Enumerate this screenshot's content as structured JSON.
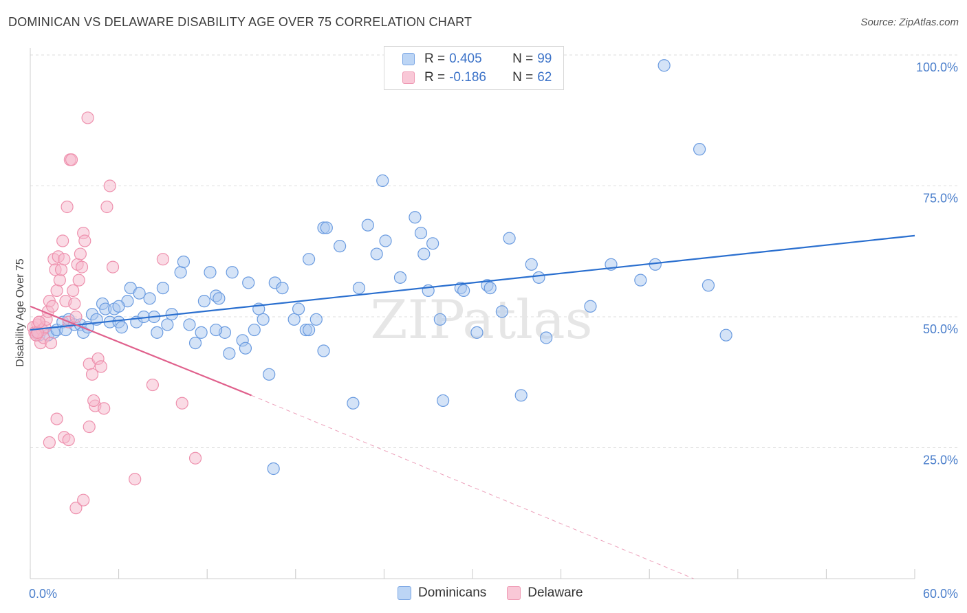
{
  "header": {
    "title": "DOMINICAN VS DELAWARE DISABILITY AGE OVER 75 CORRELATION CHART",
    "source": "Source: ZipAtlas.com"
  },
  "legend": {
    "rows": [
      {
        "r_label": "R = ",
        "r_value": "0.405",
        "n_label": "N = ",
        "n_value": "99"
      },
      {
        "r_label": "R = ",
        "r_value": "-0.186",
        "n_label": "N = ",
        "n_value": "62"
      }
    ]
  },
  "bottom_legend": {
    "dominicans": "Dominicans",
    "delaware": "Delaware"
  },
  "colors": {
    "blue_fill": "#a9c8f0",
    "blue_stroke": "#6a9be0",
    "blue_line": "#2a6fcf",
    "pink_fill": "#f6b8cb",
    "pink_stroke": "#ee90ad",
    "pink_line": "#e0608c",
    "tick_text": "#4a7ecb",
    "grid": "#dcdcdc"
  },
  "chart_data": {
    "type": "scatter",
    "title": "DOMINICAN VS DELAWARE DISABILITY AGE OVER 75 CORRELATION CHART",
    "xlabel": "",
    "ylabel": "Disability Age Over 75",
    "xlim": [
      0,
      60
    ],
    "ylim": [
      0,
      105
    ],
    "x_tick_labels": [
      "0.0%",
      "60.0%"
    ],
    "y_ticks": [
      25,
      50,
      75,
      100
    ],
    "y_tick_labels": [
      "25.0%",
      "50.0%",
      "75.0%",
      "100.0%"
    ],
    "watermark": "ZIPatlas",
    "series": [
      {
        "name": "Dominicans",
        "r": 0.405,
        "n": 99,
        "trend": {
          "x0": 0,
          "y0": 47.5,
          "x1": 60,
          "y1": 65.5
        },
        "points": [
          [
            0.4,
            47
          ],
          [
            0.6,
            46.5
          ],
          [
            0.8,
            47.5
          ],
          [
            1.2,
            46.5
          ],
          [
            1.6,
            47
          ],
          [
            1.8,
            47.5
          ],
          [
            2.2,
            49
          ],
          [
            2.4,
            47.5
          ],
          [
            2.6,
            49.5
          ],
          [
            3.0,
            48.5
          ],
          [
            3.4,
            48.5
          ],
          [
            3.6,
            47
          ],
          [
            3.9,
            48
          ],
          [
            4.2,
            50.5
          ],
          [
            4.5,
            49.5
          ],
          [
            4.9,
            52.5
          ],
          [
            5.1,
            51.5
          ],
          [
            5.4,
            49
          ],
          [
            5.7,
            51.5
          ],
          [
            6.0,
            49
          ],
          [
            6.2,
            48
          ],
          [
            6.6,
            53
          ],
          [
            6.8,
            55.5
          ],
          [
            7.2,
            49
          ],
          [
            7.4,
            54.5
          ],
          [
            7.7,
            50
          ],
          [
            8.1,
            53.5
          ],
          [
            8.4,
            50
          ],
          [
            8.6,
            47
          ],
          [
            9.0,
            55.5
          ],
          [
            9.3,
            48.5
          ],
          [
            9.6,
            50.5
          ],
          [
            10.2,
            58.5
          ],
          [
            10.4,
            60.5
          ],
          [
            10.8,
            48.5
          ],
          [
            11.2,
            45
          ],
          [
            11.6,
            47
          ],
          [
            11.8,
            53
          ],
          [
            12.2,
            58.5
          ],
          [
            12.6,
            54
          ],
          [
            12.8,
            53.5
          ],
          [
            13.2,
            47
          ],
          [
            13.5,
            43
          ],
          [
            13.7,
            58.5
          ],
          [
            14.4,
            45.5
          ],
          [
            14.8,
            56.5
          ],
          [
            15.2,
            47.5
          ],
          [
            15.5,
            51.5
          ],
          [
            15.8,
            49.5
          ],
          [
            16.2,
            39
          ],
          [
            16.6,
            56.5
          ],
          [
            17.1,
            55.5
          ],
          [
            17.9,
            49.5
          ],
          [
            18.2,
            51.5
          ],
          [
            18.7,
            47.5
          ],
          [
            18.9,
            61
          ],
          [
            19.4,
            49.5
          ],
          [
            19.9,
            43.5
          ],
          [
            19.9,
            67
          ],
          [
            20.1,
            67
          ],
          [
            21.0,
            63.5
          ],
          [
            21.9,
            33.5
          ],
          [
            22.3,
            55.5
          ],
          [
            22.9,
            67.5
          ],
          [
            23.5,
            62
          ],
          [
            23.9,
            76
          ],
          [
            24.1,
            64.5
          ],
          [
            25.1,
            57.5
          ],
          [
            26.1,
            69
          ],
          [
            26.5,
            66
          ],
          [
            26.7,
            62
          ],
          [
            27.0,
            55
          ],
          [
            27.3,
            64
          ],
          [
            27.8,
            49.5
          ],
          [
            28.0,
            34
          ],
          [
            29.2,
            55.5
          ],
          [
            29.4,
            55
          ],
          [
            30.3,
            47
          ],
          [
            31.0,
            56
          ],
          [
            31.2,
            55.5
          ],
          [
            32.0,
            51
          ],
          [
            32.5,
            65
          ],
          [
            33.3,
            35
          ],
          [
            34.0,
            60
          ],
          [
            34.5,
            57.5
          ],
          [
            35.0,
            46
          ],
          [
            38.0,
            52
          ],
          [
            39.4,
            60
          ],
          [
            41.4,
            57
          ],
          [
            42.4,
            60
          ],
          [
            43.0,
            98
          ],
          [
            45.4,
            82
          ],
          [
            46.0,
            56
          ],
          [
            47.2,
            46.5
          ],
          [
            16.5,
            21
          ],
          [
            18.9,
            47.5
          ],
          [
            12.6,
            47.5
          ],
          [
            14.6,
            44
          ],
          [
            6.0,
            52
          ]
        ]
      },
      {
        "name": "Delaware",
        "r": -0.186,
        "n": 62,
        "trend": {
          "x0": 0,
          "y0": 52,
          "x1": 15,
          "y1": 35,
          "dash_x1": 45,
          "dash_y1": 0
        },
        "points": [
          [
            0.2,
            48
          ],
          [
            0.3,
            47
          ],
          [
            0.4,
            46.5
          ],
          [
            0.5,
            48.5
          ],
          [
            0.6,
            49
          ],
          [
            0.7,
            45
          ],
          [
            0.8,
            47.5
          ],
          [
            0.9,
            46
          ],
          [
            1.0,
            48
          ],
          [
            1.1,
            49.5
          ],
          [
            1.2,
            51
          ],
          [
            1.3,
            53
          ],
          [
            1.4,
            45
          ],
          [
            1.5,
            52
          ],
          [
            1.6,
            61
          ],
          [
            1.7,
            59
          ],
          [
            1.8,
            55
          ],
          [
            1.9,
            61.5
          ],
          [
            2.0,
            57
          ],
          [
            2.1,
            59
          ],
          [
            2.2,
            64.5
          ],
          [
            2.3,
            61
          ],
          [
            2.4,
            53
          ],
          [
            2.5,
            71
          ],
          [
            2.6,
            49
          ],
          [
            2.7,
            80
          ],
          [
            2.8,
            80
          ],
          [
            2.9,
            55
          ],
          [
            3.0,
            52.5
          ],
          [
            3.1,
            50
          ],
          [
            3.2,
            60
          ],
          [
            3.3,
            57
          ],
          [
            3.4,
            62
          ],
          [
            3.5,
            59.5
          ],
          [
            3.6,
            66
          ],
          [
            3.7,
            64.5
          ],
          [
            3.9,
            88
          ],
          [
            4.0,
            41
          ],
          [
            4.2,
            39
          ],
          [
            4.4,
            33
          ],
          [
            4.6,
            42
          ],
          [
            4.8,
            40.5
          ],
          [
            5.0,
            32.5
          ],
          [
            5.2,
            71
          ],
          [
            5.4,
            75
          ],
          [
            5.6,
            59.5
          ],
          [
            1.3,
            26
          ],
          [
            1.8,
            30.5
          ],
          [
            2.3,
            27
          ],
          [
            2.6,
            26.5
          ],
          [
            3.1,
            13.5
          ],
          [
            3.6,
            15
          ],
          [
            4.0,
            29
          ],
          [
            4.3,
            34
          ],
          [
            7.1,
            19
          ],
          [
            8.3,
            37
          ],
          [
            9.0,
            61
          ],
          [
            10.3,
            33.5
          ],
          [
            11.2,
            23
          ],
          [
            0.4,
            46.5
          ],
          [
            0.5,
            47
          ],
          [
            0.6,
            49
          ]
        ]
      }
    ]
  }
}
